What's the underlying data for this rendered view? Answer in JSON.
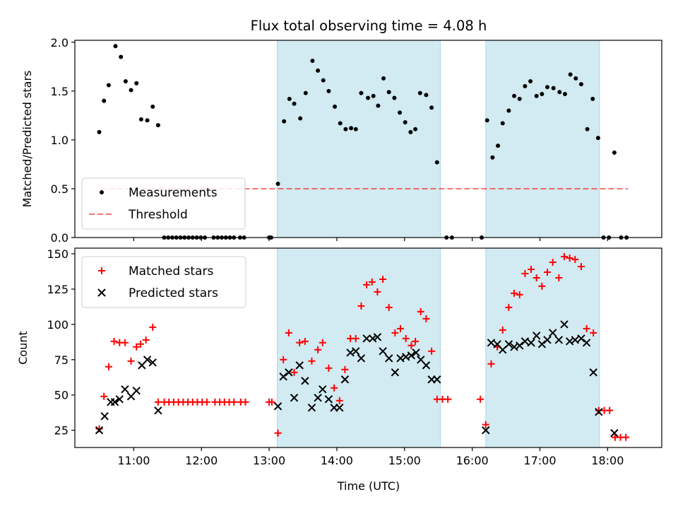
{
  "figure": {
    "title": "Flux total observing time = 4.08 h",
    "xlabel": "Time (UTC)",
    "xticks": [
      {
        "h": 11,
        "label": "11:00"
      },
      {
        "h": 12,
        "label": "12:00"
      },
      {
        "h": 13,
        "label": "13:00"
      },
      {
        "h": 14,
        "label": "14:00"
      },
      {
        "h": 15,
        "label": "15:00"
      },
      {
        "h": 16,
        "label": "16:00"
      },
      {
        "h": 17,
        "label": "17:00"
      },
      {
        "h": 18,
        "label": "18:00"
      }
    ],
    "xlim": [
      10.13,
      18.8
    ],
    "observing_windows": [
      [
        13.12,
        15.53
      ],
      [
        16.2,
        17.88
      ]
    ],
    "window_color": "#add8e6"
  },
  "chart_data": [
    {
      "type": "scatter",
      "ylabel": "Matched/Predicted stars",
      "ylim": [
        0,
        2.02
      ],
      "yticks": [
        {
          "v": 0,
          "label": "0.0"
        },
        {
          "v": 0.5,
          "label": "0.5"
        },
        {
          "v": 1,
          "label": "1.0"
        },
        {
          "v": 1.5,
          "label": "1.5"
        },
        {
          "v": 2,
          "label": "2.0"
        }
      ],
      "legend_position": "lower-left",
      "threshold": {
        "name": "Threshold",
        "value": 0.5,
        "x_range": [
          10.5,
          18.3
        ],
        "color": "#ff0000"
      },
      "series": [
        {
          "name": "Measurements",
          "color": "#000000",
          "marker": "dot",
          "points": [
            [
              10.49,
              1.08
            ],
            [
              10.56,
              1.4
            ],
            [
              10.63,
              1.56
            ],
            [
              10.73,
              1.96
            ],
            [
              10.81,
              1.85
            ],
            [
              10.88,
              1.6
            ],
            [
              10.96,
              1.51
            ],
            [
              11.04,
              1.58
            ],
            [
              11.11,
              1.21
            ],
            [
              11.2,
              1.2
            ],
            [
              11.28,
              1.34
            ],
            [
              11.36,
              1.15
            ],
            [
              11.45,
              0
            ],
            [
              11.51,
              0
            ],
            [
              11.57,
              0
            ],
            [
              11.63,
              0
            ],
            [
              11.69,
              0
            ],
            [
              11.75,
              0
            ],
            [
              11.81,
              0
            ],
            [
              11.87,
              0
            ],
            [
              11.93,
              0
            ],
            [
              11.99,
              0
            ],
            [
              12.05,
              0
            ],
            [
              12.18,
              0
            ],
            [
              12.24,
              0
            ],
            [
              12.3,
              0
            ],
            [
              12.36,
              0
            ],
            [
              12.42,
              0
            ],
            [
              12.48,
              0
            ],
            [
              12.57,
              0
            ],
            [
              12.63,
              0
            ],
            [
              13.0,
              0
            ],
            [
              13.03,
              0
            ],
            [
              13.13,
              0.55
            ],
            [
              13.22,
              1.19
            ],
            [
              13.3,
              1.42
            ],
            [
              13.37,
              1.37
            ],
            [
              13.46,
              1.22
            ],
            [
              13.54,
              1.48
            ],
            [
              13.64,
              1.81
            ],
            [
              13.72,
              1.71
            ],
            [
              13.8,
              1.61
            ],
            [
              13.88,
              1.5
            ],
            [
              13.97,
              1.34
            ],
            [
              14.05,
              1.17
            ],
            [
              14.13,
              1.11
            ],
            [
              14.21,
              1.12
            ],
            [
              14.28,
              1.11
            ],
            [
              14.36,
              1.48
            ],
            [
              14.46,
              1.43
            ],
            [
              14.54,
              1.45
            ],
            [
              14.61,
              1.35
            ],
            [
              14.69,
              1.63
            ],
            [
              14.77,
              1.49
            ],
            [
              14.85,
              1.43
            ],
            [
              14.93,
              1.28
            ],
            [
              15.01,
              1.18
            ],
            [
              15.09,
              1.08
            ],
            [
              15.16,
              1.11
            ],
            [
              15.23,
              1.48
            ],
            [
              15.32,
              1.46
            ],
            [
              15.4,
              1.33
            ],
            [
              15.48,
              0.77
            ],
            [
              15.62,
              0
            ],
            [
              15.7,
              0
            ],
            [
              16.14,
              0
            ],
            [
              16.22,
              1.2
            ],
            [
              16.3,
              0.82
            ],
            [
              16.38,
              0.94
            ],
            [
              16.45,
              1.17
            ],
            [
              16.54,
              1.3
            ],
            [
              16.62,
              1.45
            ],
            [
              16.7,
              1.42
            ],
            [
              16.78,
              1.55
            ],
            [
              16.86,
              1.6
            ],
            [
              16.95,
              1.45
            ],
            [
              17.03,
              1.47
            ],
            [
              17.11,
              1.54
            ],
            [
              17.2,
              1.53
            ],
            [
              17.29,
              1.49
            ],
            [
              17.37,
              1.47
            ],
            [
              17.45,
              1.67
            ],
            [
              17.53,
              1.63
            ],
            [
              17.61,
              1.57
            ],
            [
              17.7,
              1.11
            ],
            [
              17.78,
              1.42
            ],
            [
              17.86,
              1.02
            ],
            [
              17.94,
              0
            ],
            [
              18.02,
              0
            ],
            [
              18.1,
              0.87
            ],
            [
              18.2,
              0
            ],
            [
              18.28,
              0
            ]
          ]
        }
      ]
    },
    {
      "type": "scatter",
      "ylabel": "Count",
      "ylim": [
        12.8,
        154
      ],
      "yticks": [
        {
          "v": 25,
          "label": "25"
        },
        {
          "v": 50,
          "label": "50"
        },
        {
          "v": 75,
          "label": "75"
        },
        {
          "v": 100,
          "label": "100"
        },
        {
          "v": 125,
          "label": "125"
        },
        {
          "v": 150,
          "label": "150"
        }
      ],
      "legend_position": "upper-left",
      "series": [
        {
          "name": "Matched stars",
          "color": "#ff0000",
          "marker": "plus",
          "points": [
            [
              10.49,
              26
            ],
            [
              10.56,
              49
            ],
            [
              10.63,
              70
            ],
            [
              10.71,
              88
            ],
            [
              10.79,
              87
            ],
            [
              10.87,
              87
            ],
            [
              10.96,
              74
            ],
            [
              11.04,
              84
            ],
            [
              11.1,
              86
            ],
            [
              11.18,
              89
            ],
            [
              11.28,
              98
            ],
            [
              11.36,
              45
            ],
            [
              11.45,
              45
            ],
            [
              11.52,
              45
            ],
            [
              11.59,
              45
            ],
            [
              11.66,
              45
            ],
            [
              11.73,
              45
            ],
            [
              11.8,
              45
            ],
            [
              11.87,
              45
            ],
            [
              11.94,
              45
            ],
            [
              12.01,
              45
            ],
            [
              12.08,
              45
            ],
            [
              12.2,
              45
            ],
            [
              12.27,
              45
            ],
            [
              12.34,
              45
            ],
            [
              12.41,
              45
            ],
            [
              12.48,
              45
            ],
            [
              12.58,
              45
            ],
            [
              12.65,
              45
            ],
            [
              13.0,
              45
            ],
            [
              13.04,
              45
            ],
            [
              13.13,
              23
            ],
            [
              13.21,
              75
            ],
            [
              13.29,
              94
            ],
            [
              13.37,
              66
            ],
            [
              13.45,
              87
            ],
            [
              13.53,
              88
            ],
            [
              13.63,
              74
            ],
            [
              13.72,
              82
            ],
            [
              13.79,
              87
            ],
            [
              13.88,
              69
            ],
            [
              13.96,
              55
            ],
            [
              14.04,
              46
            ],
            [
              14.12,
              68
            ],
            [
              14.2,
              90
            ],
            [
              14.28,
              90
            ],
            [
              14.36,
              113
            ],
            [
              14.44,
              128
            ],
            [
              14.52,
              130
            ],
            [
              14.6,
              123
            ],
            [
              14.68,
              132
            ],
            [
              14.77,
              112
            ],
            [
              14.86,
              94
            ],
            [
              14.94,
              97
            ],
            [
              15.02,
              90
            ],
            [
              15.1,
              85
            ],
            [
              15.16,
              88
            ],
            [
              15.24,
              109
            ],
            [
              15.32,
              104
            ],
            [
              15.4,
              81
            ],
            [
              15.48,
              47
            ],
            [
              15.56,
              47
            ],
            [
              15.64,
              47
            ],
            [
              16.12,
              47
            ],
            [
              16.2,
              29
            ],
            [
              16.28,
              72
            ],
            [
              16.37,
              84
            ],
            [
              16.45,
              96
            ],
            [
              16.54,
              112
            ],
            [
              16.62,
              122
            ],
            [
              16.7,
              121
            ],
            [
              16.78,
              136
            ],
            [
              16.87,
              139
            ],
            [
              16.95,
              133
            ],
            [
              17.03,
              127
            ],
            [
              17.11,
              137
            ],
            [
              17.19,
              144
            ],
            [
              17.28,
              133
            ],
            [
              17.36,
              148
            ],
            [
              17.44,
              147
            ],
            [
              17.52,
              146
            ],
            [
              17.61,
              141
            ],
            [
              17.69,
              97
            ],
            [
              17.79,
              94
            ],
            [
              17.87,
              39
            ],
            [
              17.95,
              39
            ],
            [
              18.03,
              39
            ],
            [
              18.11,
              20
            ],
            [
              18.19,
              20
            ],
            [
              18.27,
              20
            ]
          ]
        },
        {
          "name": "Predicted stars",
          "color": "#000000",
          "marker": "x",
          "points": [
            [
              10.49,
              25
            ],
            [
              10.57,
              35
            ],
            [
              10.66,
              45
            ],
            [
              10.72,
              45
            ],
            [
              10.79,
              47
            ],
            [
              10.87,
              54
            ],
            [
              10.96,
              49
            ],
            [
              11.04,
              53
            ],
            [
              11.12,
              71
            ],
            [
              11.2,
              75
            ],
            [
              11.28,
              73
            ],
            [
              11.36,
              39
            ],
            [
              13.13,
              42
            ],
            [
              13.21,
              63
            ],
            [
              13.29,
              66
            ],
            [
              13.37,
              48
            ],
            [
              13.45,
              71
            ],
            [
              13.53,
              60
            ],
            [
              13.63,
              41
            ],
            [
              13.72,
              48
            ],
            [
              13.79,
              54
            ],
            [
              13.88,
              47
            ],
            [
              13.96,
              41
            ],
            [
              14.04,
              41
            ],
            [
              14.12,
              61
            ],
            [
              14.2,
              80
            ],
            [
              14.28,
              81
            ],
            [
              14.36,
              76
            ],
            [
              14.44,
              90
            ],
            [
              14.53,
              90
            ],
            [
              14.6,
              91
            ],
            [
              14.68,
              81
            ],
            [
              14.77,
              76
            ],
            [
              14.86,
              66
            ],
            [
              14.94,
              76
            ],
            [
              15.02,
              77
            ],
            [
              15.1,
              78
            ],
            [
              15.17,
              80
            ],
            [
              15.24,
              75
            ],
            [
              15.32,
              71
            ],
            [
              15.4,
              61
            ],
            [
              15.48,
              61
            ],
            [
              16.2,
              25
            ],
            [
              16.28,
              87
            ],
            [
              16.37,
              86
            ],
            [
              16.45,
              82
            ],
            [
              16.54,
              86
            ],
            [
              16.62,
              84
            ],
            [
              16.7,
              85
            ],
            [
              16.78,
              88
            ],
            [
              16.87,
              87
            ],
            [
              16.95,
              92
            ],
            [
              17.03,
              86
            ],
            [
              17.11,
              89
            ],
            [
              17.19,
              94
            ],
            [
              17.28,
              89
            ],
            [
              17.36,
              100
            ],
            [
              17.44,
              88
            ],
            [
              17.52,
              89
            ],
            [
              17.61,
              90
            ],
            [
              17.69,
              87
            ],
            [
              17.79,
              66
            ],
            [
              17.87,
              38
            ],
            [
              18.1,
              23
            ]
          ]
        }
      ]
    }
  ]
}
